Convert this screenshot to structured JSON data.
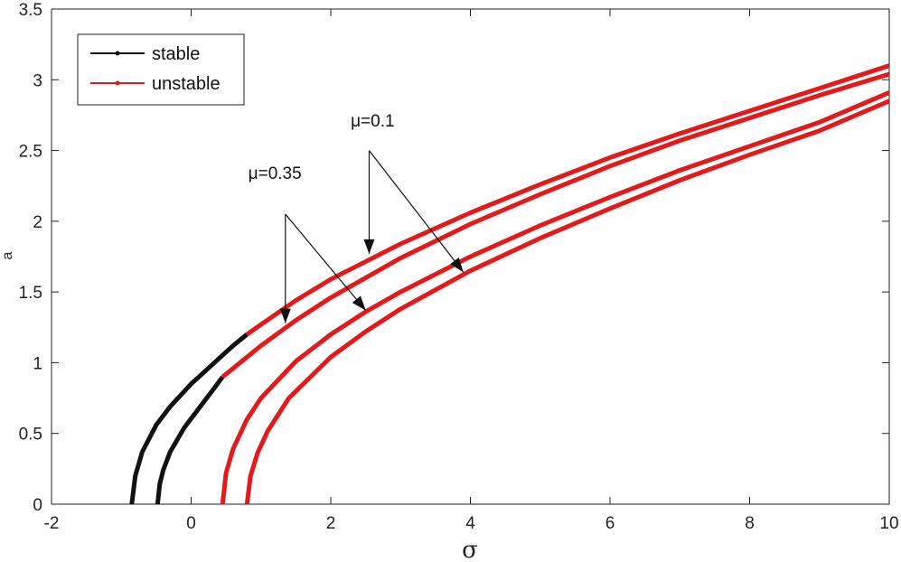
{
  "chart_data": {
    "type": "line",
    "xlabel": "σ",
    "ylabel": "a",
    "xlim": [
      -2,
      10
    ],
    "ylim": [
      0,
      3.5
    ],
    "x_ticks": [
      -2,
      0,
      2,
      4,
      6,
      8,
      10
    ],
    "y_ticks": [
      0,
      0.5,
      1,
      1.5,
      2,
      2.5,
      3,
      3.5
    ],
    "x_tick_labels": [
      "-2",
      "0",
      "2",
      "4",
      "6",
      "8",
      "10"
    ],
    "y_tick_labels": [
      "0",
      "0.5",
      "1",
      "1.5",
      "2",
      "2.5",
      "3",
      "3.5"
    ],
    "grid": false,
    "legend": {
      "position": "top-left",
      "entries": [
        {
          "label": "stable",
          "color": "#111111"
        },
        {
          "label": "unstable",
          "color": "#e31a1c"
        }
      ]
    },
    "series": [
      {
        "curve": "outer-upper",
        "stable": {
          "x": [
            -0.85,
            -0.8,
            -0.7,
            -0.5,
            -0.3,
            0,
            0.2,
            0.4,
            0.6,
            0.8
          ],
          "y": [
            0,
            0.2,
            0.37,
            0.56,
            0.69,
            0.85,
            0.94,
            1.03,
            1.12,
            1.2
          ]
        },
        "unstable": {
          "x": [
            0.8,
            1,
            1.5,
            2,
            3,
            4,
            5,
            6,
            7,
            8,
            9,
            10
          ],
          "y": [
            1.2,
            1.27,
            1.44,
            1.59,
            1.84,
            2.06,
            2.26,
            2.45,
            2.62,
            2.78,
            2.94,
            3.1
          ]
        }
      },
      {
        "curve": "outer-lower",
        "stable": {
          "x": [
            -0.48,
            -0.45,
            -0.4,
            -0.3,
            -0.1,
            0.1,
            0.3,
            0.45
          ],
          "y": [
            0,
            0.14,
            0.24,
            0.37,
            0.54,
            0.67,
            0.8,
            0.9
          ]
        },
        "unstable": {
          "x": [
            0.45,
            1,
            1.5,
            2,
            3,
            4,
            5,
            6,
            7,
            8,
            9,
            10
          ],
          "y": [
            0.9,
            1.12,
            1.3,
            1.46,
            1.74,
            1.98,
            2.19,
            2.39,
            2.57,
            2.73,
            2.89,
            3.04
          ]
        }
      },
      {
        "curve": "inner-upper",
        "stable": {
          "x": [],
          "y": []
        },
        "unstable": {
          "x": [
            0.45,
            0.5,
            0.6,
            0.8,
            1,
            1.5,
            2,
            2.5,
            3,
            4,
            5,
            6,
            7,
            8,
            9,
            10
          ],
          "y": [
            0,
            0.22,
            0.39,
            0.6,
            0.75,
            1.01,
            1.2,
            1.36,
            1.5,
            1.75,
            1.97,
            2.17,
            2.36,
            2.53,
            2.7,
            2.91
          ]
        }
      },
      {
        "curve": "inner-lower",
        "stable": {
          "x": [],
          "y": []
        },
        "unstable": {
          "x": [
            0.8,
            0.85,
            0.95,
            1.1,
            1.4,
            2,
            2.5,
            3,
            4,
            5,
            6,
            7,
            8,
            9,
            10
          ],
          "y": [
            0,
            0.2,
            0.36,
            0.52,
            0.75,
            1.04,
            1.22,
            1.38,
            1.65,
            1.88,
            2.09,
            2.29,
            2.47,
            2.64,
            2.85
          ]
        }
      }
    ],
    "annotations": [
      {
        "text": "μ=0.35",
        "anchor": [
          1.2,
          2.3
        ],
        "arrow_from": [
          1.35,
          2.05
        ],
        "arrow_to": [
          [
            1.35,
            1.28
          ],
          [
            2.5,
            1.37
          ]
        ]
      },
      {
        "text": "μ=0.1",
        "anchor": [
          2.6,
          2.67
        ],
        "arrow_from": [
          2.55,
          2.5
        ],
        "arrow_to": [
          [
            2.55,
            1.77
          ],
          [
            3.9,
            1.64
          ]
        ]
      }
    ]
  }
}
